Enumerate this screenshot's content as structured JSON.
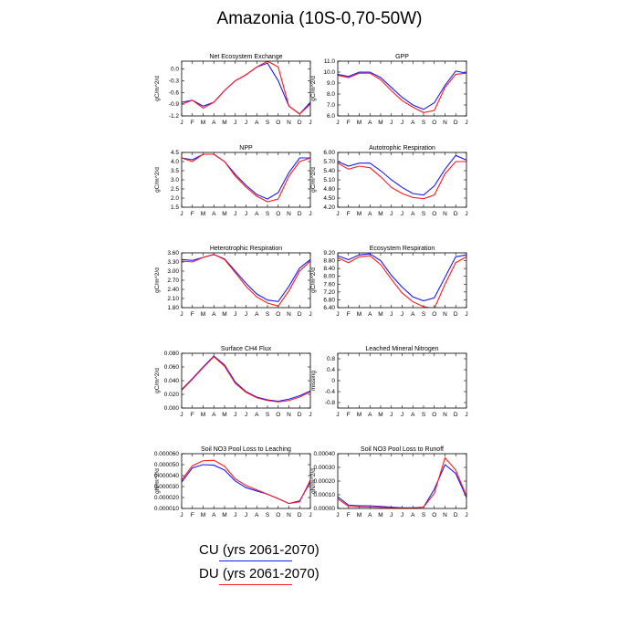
{
  "title": "Amazonia (10S-0,70-50W)",
  "months": [
    "J",
    "F",
    "M",
    "A",
    "M",
    "J",
    "J",
    "A",
    "S",
    "O",
    "N",
    "D",
    "J"
  ],
  "colors": {
    "CU": "#1a1aff",
    "DU": "#ff1a1a"
  },
  "legend": [
    {
      "key": "CU",
      "label": "CU (yrs 2061-2070)",
      "color": "#1a1aff"
    },
    {
      "key": "DU",
      "label": "DU (yrs 2061-2070)",
      "color": "#ff1a1a"
    }
  ],
  "chart_data": [
    {
      "type": "line",
      "title": "Net Ecosystem Exchange",
      "ylabel": "gC/m^2/d",
      "ylim": [
        -1.2,
        0.2
      ],
      "yticks": [
        "-1.2",
        "-0.9",
        "-0.6",
        "-0.3",
        "0.0"
      ],
      "ytick_values": [
        -1.2,
        -0.9,
        -0.6,
        -0.3,
        0.0
      ],
      "series": [
        {
          "key": "CU",
          "values": [
            -0.85,
            -0.8,
            -0.95,
            -0.85,
            -0.55,
            -0.3,
            -0.15,
            0.05,
            0.15,
            -0.3,
            -0.95,
            -1.15,
            -0.85
          ]
        },
        {
          "key": "DU",
          "values": [
            -0.9,
            -0.8,
            -1.0,
            -0.85,
            -0.55,
            -0.3,
            -0.15,
            0.05,
            0.2,
            0.05,
            -0.95,
            -1.15,
            -0.9
          ]
        }
      ]
    },
    {
      "type": "line",
      "title": "GPP",
      "ylabel": "gC/m^2/d",
      "ylim": [
        6.0,
        11.0
      ],
      "yticks": [
        "6.0",
        "7.0",
        "8.0",
        "9.0",
        "10.0",
        "11.0"
      ],
      "ytick_values": [
        6,
        7,
        8,
        9,
        10,
        11
      ],
      "series": [
        {
          "key": "CU",
          "values": [
            9.8,
            9.6,
            10.0,
            10.0,
            9.5,
            8.6,
            7.7,
            7.0,
            6.6,
            7.2,
            8.8,
            10.1,
            9.9
          ]
        },
        {
          "key": "DU",
          "values": [
            9.7,
            9.5,
            9.9,
            9.9,
            9.3,
            8.3,
            7.4,
            6.8,
            6.3,
            6.5,
            8.6,
            9.8,
            9.9
          ]
        }
      ]
    },
    {
      "type": "line",
      "title": "NPP",
      "ylabel": "gC/m^2/d",
      "ylim": [
        1.5,
        4.5
      ],
      "yticks": [
        "1.5",
        "2.0",
        "2.5",
        "3.0",
        "3.5",
        "4.0",
        "4.5"
      ],
      "ytick_values": [
        1.5,
        2.0,
        2.5,
        3.0,
        3.5,
        4.0,
        4.5
      ],
      "series": [
        {
          "key": "CU",
          "values": [
            4.2,
            4.1,
            4.4,
            4.4,
            4.0,
            3.3,
            2.7,
            2.2,
            1.95,
            2.3,
            3.4,
            4.2,
            4.2
          ]
        },
        {
          "key": "DU",
          "values": [
            4.2,
            4.0,
            4.4,
            4.4,
            4.0,
            3.2,
            2.6,
            2.1,
            1.8,
            1.95,
            3.2,
            4.0,
            4.2
          ]
        }
      ]
    },
    {
      "type": "line",
      "title": "Autotrophic Respiration",
      "ylabel": "gC/m^2/d",
      "ylim": [
        4.2,
        6.0
      ],
      "yticks": [
        "4.20",
        "4.50",
        "4.80",
        "5.10",
        "5.40",
        "5.70",
        "6.00"
      ],
      "ytick_values": [
        4.2,
        4.5,
        4.8,
        5.1,
        5.4,
        5.7,
        6.0
      ],
      "series": [
        {
          "key": "CU",
          "values": [
            5.7,
            5.55,
            5.65,
            5.65,
            5.4,
            5.1,
            4.85,
            4.65,
            4.6,
            4.9,
            5.45,
            5.9,
            5.75
          ]
        },
        {
          "key": "DU",
          "values": [
            5.65,
            5.45,
            5.55,
            5.5,
            5.2,
            4.85,
            4.65,
            4.52,
            4.48,
            4.6,
            5.3,
            5.7,
            5.7
          ]
        }
      ]
    },
    {
      "type": "line",
      "title": "Heterotrophic Respiration",
      "ylabel": "gC/m^2/d",
      "ylim": [
        1.8,
        3.6
      ],
      "yticks": [
        "1.80",
        "2.10",
        "2.40",
        "2.70",
        "3.00",
        "3.30",
        "3.60"
      ],
      "ytick_values": [
        1.8,
        2.1,
        2.4,
        2.7,
        3.0,
        3.3,
        3.6
      ],
      "series": [
        {
          "key": "CU",
          "values": [
            3.38,
            3.35,
            3.45,
            3.55,
            3.4,
            3.0,
            2.6,
            2.25,
            2.05,
            2.0,
            2.5,
            3.1,
            3.38
          ]
        },
        {
          "key": "DU",
          "values": [
            3.33,
            3.3,
            3.45,
            3.55,
            3.38,
            2.95,
            2.5,
            2.15,
            1.95,
            1.85,
            2.35,
            3.0,
            3.33
          ]
        }
      ]
    },
    {
      "type": "line",
      "title": "Ecosystem Respiration",
      "ylabel": "gC/m^2/d",
      "ylim": [
        6.4,
        9.2
      ],
      "yticks": [
        "6.40",
        "6.80",
        "7.20",
        "7.60",
        "8.00",
        "8.40",
        "8.80",
        "9.20"
      ],
      "ytick_values": [
        6.4,
        6.8,
        7.2,
        7.6,
        8.0,
        8.4,
        8.8,
        9.2
      ],
      "series": [
        {
          "key": "CU",
          "values": [
            9.05,
            8.85,
            9.1,
            9.15,
            8.8,
            8.05,
            7.45,
            6.95,
            6.75,
            6.9,
            7.95,
            9.0,
            9.1
          ]
        },
        {
          "key": "DU",
          "values": [
            8.95,
            8.7,
            9.0,
            9.05,
            8.6,
            7.85,
            7.15,
            6.7,
            6.45,
            6.35,
            7.6,
            8.7,
            9.0
          ]
        }
      ]
    },
    {
      "type": "line",
      "title": "Surface CH4 Flux",
      "ylabel": "gC/m^2/d",
      "ylim": [
        0.0,
        0.08
      ],
      "yticks": [
        "0.000",
        "0.020",
        "0.040",
        "0.060",
        "0.080"
      ],
      "ytick_values": [
        0,
        0.02,
        0.04,
        0.06,
        0.08
      ],
      "series": [
        {
          "key": "CU",
          "values": [
            0.027,
            0.043,
            0.06,
            0.076,
            0.063,
            0.038,
            0.024,
            0.016,
            0.012,
            0.01,
            0.013,
            0.018,
            0.025
          ]
        },
        {
          "key": "DU",
          "values": [
            0.026,
            0.042,
            0.059,
            0.075,
            0.061,
            0.036,
            0.023,
            0.015,
            0.011,
            0.009,
            0.011,
            0.016,
            0.024
          ]
        }
      ]
    },
    {
      "type": "line",
      "title": "Leached Mineral Nitrogen",
      "ylabel": "missing",
      "ylim": [
        -1.0,
        1.0
      ],
      "yticks": [
        "-0.8",
        "-0.4",
        "0",
        "0.4",
        "0.8"
      ],
      "ytick_values": [
        -0.8,
        -0.4,
        0,
        0.4,
        0.8
      ],
      "series": []
    },
    {
      "type": "line",
      "title": "Soil NO3 Pool Loss to Leaching",
      "ylabel": "gN/m^2/d",
      "ylim": [
        1e-05,
        6e-05
      ],
      "yticks": [
        "0.000010",
        "0.000020",
        "0.000030",
        "0.000040",
        "0.000050",
        "0.000060"
      ],
      "ytick_values": [
        1e-05,
        2e-05,
        3e-05,
        4e-05,
        5e-05,
        6e-05
      ],
      "series": [
        {
          "key": "CU",
          "values": [
            3.4e-05,
            4.7e-05,
            5e-05,
            4.95e-05,
            4.5e-05,
            3.5e-05,
            2.9e-05,
            2.6e-05,
            2.3e-05,
            1.9e-05,
            1.45e-05,
            1.7e-05,
            3.4e-05
          ]
        },
        {
          "key": "DU",
          "values": [
            3.6e-05,
            4.9e-05,
            5.35e-05,
            5.4e-05,
            4.85e-05,
            3.7e-05,
            3.1e-05,
            2.7e-05,
            2.3e-05,
            1.9e-05,
            1.45e-05,
            1.6e-05,
            3.6e-05
          ]
        }
      ]
    },
    {
      "type": "line",
      "title": "Soil NO3 Pool Loss to Runoff",
      "ylabel": "gN/m^2/d",
      "ylim": [
        0,
        0.0004
      ],
      "yticks": [
        "0.00000",
        "0.00010",
        "0.00020",
        "0.00030",
        "0.00040"
      ],
      "ytick_values": [
        0,
        0.0001,
        0.0002,
        0.0003,
        0.0004
      ],
      "series": [
        {
          "key": "CU",
          "values": [
            8.5e-05,
            2.5e-05,
            2e-05,
            2e-05,
            1.5e-05,
            1e-05,
            5e-06,
            5e-06,
            1e-05,
            0.00014,
            0.00032,
            0.000255,
            8e-05
          ]
        },
        {
          "key": "DU",
          "values": [
            7e-05,
            1.5e-05,
            1.2e-05,
            1e-05,
            8e-06,
            5e-06,
            3e-06,
            3e-06,
            1e-05,
            0.00011,
            0.00037,
            0.00028,
            9e-05
          ]
        }
      ]
    }
  ]
}
